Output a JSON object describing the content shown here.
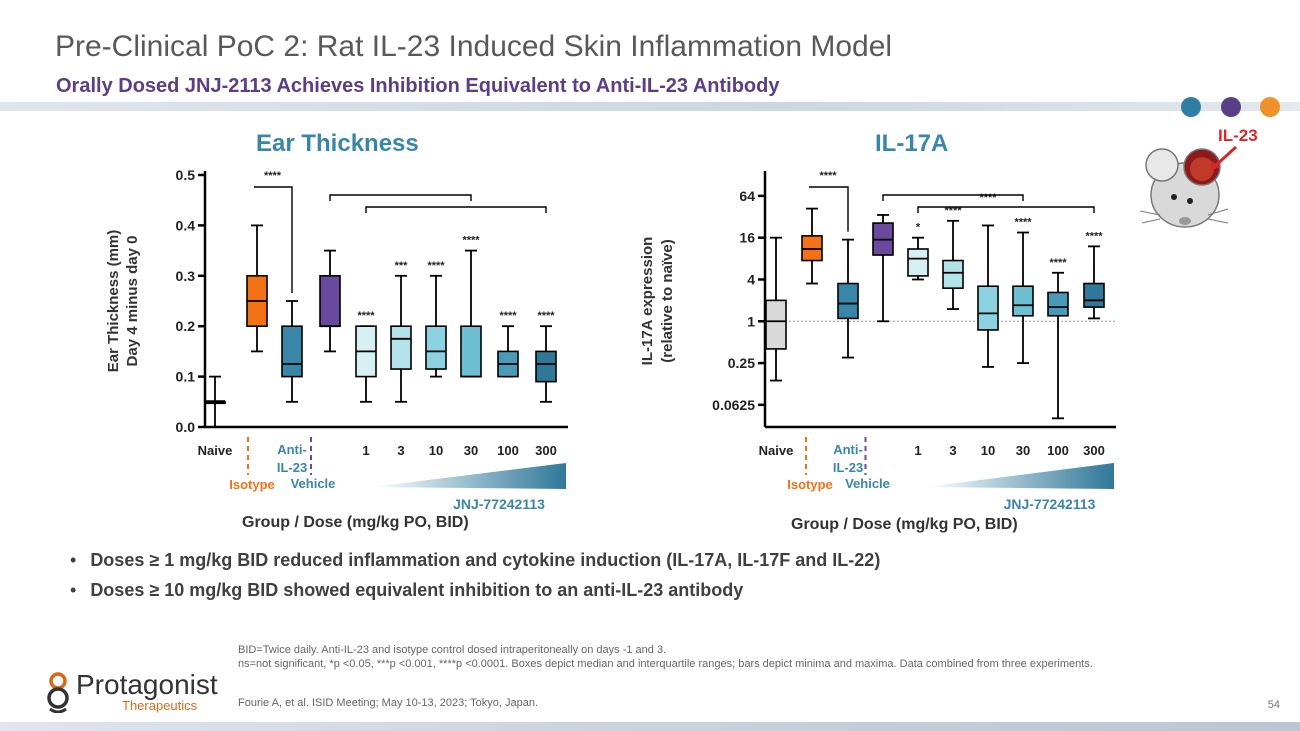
{
  "slide": {
    "title": "Pre-Clinical PoC 2: Rat IL-23 Induced Skin Inflammation Model",
    "subtitle": "Orally Dosed JNJ-2113 Achieves Inhibition Equivalent to Anti-IL-23 Antibody",
    "dot_colors": [
      "#2e7ea6",
      "#5b3f86",
      "#f0912a"
    ],
    "mouse_label": "IL-23",
    "page_number": "54"
  },
  "bullets": [
    "Doses ≥ 1 mg/kg BID reduced inflammation and cytokine induction (IL-17A, IL-17F and IL-22)",
    "Doses ≥ 10 mg/kg BID showed equivalent inhibition to an anti-IL-23 antibody"
  ],
  "footnotes": {
    "line1": "BID=Twice daily. Anti-IL-23 and isotype control dosed intraperitoneally on days -1 and 3.",
    "line2": "ns=not significant, *p <0.05, ***p <0.001, ****p <0.0001. Boxes depict median and interquartile ranges; bars depict minima and maxima. Data combined from three experiments.",
    "reference": "Fourie A, et al. ISID Meeting; May 10-13, 2023; Tokyo, Japan."
  },
  "logo": {
    "name": "Protagonist",
    "sub": "Therapeutics"
  },
  "chart_data": [
    {
      "type": "box",
      "title": "Ear Thickness",
      "ylabel_line1": "Ear Thickness  (mm)",
      "ylabel_line2": "Day 4 minus day 0",
      "xlabel": "Group / Dose (mg/kg PO, BID)",
      "ylim": [
        0,
        0.5
      ],
      "yticks": [
        0.0,
        0.1,
        0.2,
        0.3,
        0.4,
        0.5
      ],
      "ytick_labels": [
        "0.0",
        "0.1",
        "0.2",
        "0.3",
        "0.4",
        "0.5"
      ],
      "categories": [
        "Naive",
        "Isotype",
        "Anti-IL-23",
        "Vehicle",
        "1",
        "3",
        "10",
        "30",
        "100",
        "300"
      ],
      "tick_labels": [
        "Naive",
        "Anti-",
        "IL-23",
        "1",
        "3",
        "10",
        "30",
        "100",
        "300"
      ],
      "group_labels": {
        "isotype": "Isotype",
        "vehicle": "Vehicle",
        "compound": "JNJ-77242113"
      },
      "boxes": [
        {
          "group": "Naive",
          "min": 0.0,
          "q1": 0.05,
          "median": 0.05,
          "q3": 0.05,
          "max": 0.1,
          "color": "#1a1a1a",
          "sig": ""
        },
        {
          "group": "Isotype",
          "min": 0.15,
          "q1": 0.2,
          "median": 0.25,
          "q3": 0.3,
          "max": 0.4,
          "color": "#f47216",
          "sig": ""
        },
        {
          "group": "Anti-IL-23",
          "min": 0.05,
          "q1": 0.1,
          "median": 0.125,
          "q3": 0.2,
          "max": 0.25,
          "color": "#3a86a8",
          "sig": ""
        },
        {
          "group": "Vehicle",
          "min": 0.15,
          "q1": 0.2,
          "median": 0.2,
          "q3": 0.3,
          "max": 0.35,
          "color": "#6a4a9c",
          "sig": ""
        },
        {
          "group": "1",
          "min": 0.05,
          "q1": 0.1,
          "median": 0.15,
          "q3": 0.2,
          "max": 0.2,
          "color": "#d6f0f4",
          "sig": "****"
        },
        {
          "group": "3",
          "min": 0.05,
          "q1": 0.115,
          "median": 0.175,
          "q3": 0.2,
          "max": 0.3,
          "color": "#b3e2ea",
          "sig": "***"
        },
        {
          "group": "10",
          "min": 0.1,
          "q1": 0.115,
          "median": 0.15,
          "q3": 0.2,
          "max": 0.3,
          "color": "#8dd2e0",
          "sig": "****"
        },
        {
          "group": "30",
          "min": 0.1,
          "q1": 0.1,
          "median": 0.1,
          "q3": 0.2,
          "max": 0.35,
          "color": "#6fbfd3",
          "sig": "****"
        },
        {
          "group": "100",
          "min": 0.1,
          "q1": 0.1,
          "median": 0.125,
          "q3": 0.15,
          "max": 0.2,
          "color": "#4a9ab8",
          "sig": "****"
        },
        {
          "group": "300",
          "min": 0.05,
          "q1": 0.09,
          "median": 0.125,
          "q3": 0.15,
          "max": 0.2,
          "color": "#2f7899",
          "sig": "****"
        }
      ],
      "comparison_sig": "****"
    },
    {
      "type": "box",
      "title": "IL-17A",
      "ylabel_line1": "IL-17A expression",
      "ylabel_line2": "(relative to naïve)",
      "xlabel": "Group / Dose (mg/kg PO, BID)",
      "yscale": "log2",
      "ylim": [
        0.03,
        128
      ],
      "yticks": [
        0.0625,
        0.25,
        1,
        4,
        16,
        64
      ],
      "ytick_labels": [
        "0.0625",
        "0.25",
        "1",
        "4",
        "16",
        "64"
      ],
      "categories": [
        "Naive",
        "Isotype",
        "Anti-IL-23",
        "Vehicle",
        "1",
        "3",
        "10",
        "30",
        "100",
        "300"
      ],
      "tick_labels": [
        "Naive",
        "Anti-",
        "IL-23",
        "1",
        "3",
        "10",
        "30",
        "100",
        "300"
      ],
      "group_labels": {
        "isotype": "Isotype",
        "vehicle": "Vehicle",
        "compound": "JNJ-77242113"
      },
      "boxes": [
        {
          "group": "Naive",
          "min": 0.14,
          "q1": 0.4,
          "median": 1.0,
          "q3": 2.0,
          "max": 16,
          "color": "#d9d9d9",
          "sig": ""
        },
        {
          "group": "Isotype",
          "min": 3.5,
          "q1": 7.5,
          "median": 11,
          "q3": 17,
          "max": 42,
          "color": "#f47216",
          "sig": ""
        },
        {
          "group": "Anti-IL-23",
          "min": 0.3,
          "q1": 1.1,
          "median": 1.8,
          "q3": 3.5,
          "max": 15,
          "color": "#3a86a8",
          "sig": ""
        },
        {
          "group": "Vehicle",
          "min": 1.0,
          "q1": 9,
          "median": 15,
          "q3": 26,
          "max": 34,
          "color": "#6a4a9c",
          "sig": ""
        },
        {
          "group": "1",
          "min": 4.0,
          "q1": 4.5,
          "median": 8,
          "q3": 11,
          "max": 16,
          "color": "#d6f0f4",
          "sig": "*"
        },
        {
          "group": "3",
          "min": 1.5,
          "q1": 3.0,
          "median": 5,
          "q3": 7.5,
          "max": 28,
          "color": "#b3e2ea",
          "sig": "****"
        },
        {
          "group": "10",
          "min": 0.22,
          "q1": 0.75,
          "median": 1.3,
          "q3": 3.2,
          "max": 24,
          "color": "#8dd2e0",
          "sig": ""
        },
        {
          "group": "30",
          "min": 0.25,
          "q1": 1.2,
          "median": 1.7,
          "q3": 3.2,
          "max": 19,
          "color": "#6fbfd3",
          "sig": "****"
        },
        {
          "group": "100",
          "min": 0.04,
          "q1": 1.2,
          "median": 1.6,
          "q3": 2.6,
          "max": 5,
          "color": "#4a9ab8",
          "sig": "****"
        },
        {
          "group": "300",
          "min": 1.1,
          "q1": 1.6,
          "median": 2.0,
          "q3": 3.5,
          "max": 12,
          "color": "#2f7899",
          "sig": "****"
        }
      ],
      "comparison_sig": "****",
      "extra_sig": "****",
      "reference_line": 1
    }
  ]
}
